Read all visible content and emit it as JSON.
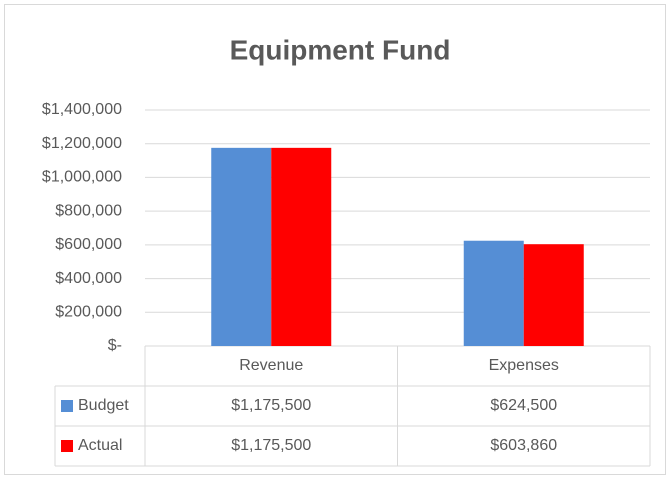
{
  "chart_data": {
    "type": "bar",
    "title": "Equipment Fund",
    "categories": [
      "Revenue",
      "Expenses"
    ],
    "series": [
      {
        "name": "Budget",
        "color": "#558ed5",
        "values": [
          1175500,
          624500
        ],
        "value_labels": [
          "$1,175,500",
          "$624,500"
        ]
      },
      {
        "name": "Actual",
        "color": "#ff0000",
        "values": [
          1175500,
          603860
        ],
        "value_labels": [
          "$1,175,500",
          "$603,860"
        ]
      }
    ],
    "ylim": [
      0,
      1400000
    ],
    "yticks": [
      {
        "value": 0,
        "label": "$-"
      },
      {
        "value": 200000,
        "label": "$200,000"
      },
      {
        "value": 400000,
        "label": "$400,000"
      },
      {
        "value": 600000,
        "label": "$600,000"
      },
      {
        "value": 800000,
        "label": "$800,000"
      },
      {
        "value": 1000000,
        "label": "$1,000,000"
      },
      {
        "value": 1200000,
        "label": "$1,200,000"
      },
      {
        "value": 1400000,
        "label": "$1,400,000"
      }
    ],
    "grid": true
  }
}
